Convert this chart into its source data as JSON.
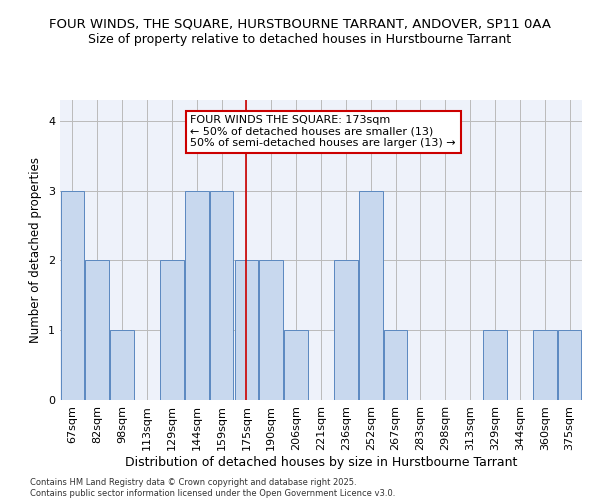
{
  "title": "FOUR WINDS, THE SQUARE, HURSTBOURNE TARRANT, ANDOVER, SP11 0AA",
  "subtitle": "Size of property relative to detached houses in Hurstbourne Tarrant",
  "xlabel": "Distribution of detached houses by size in Hurstbourne Tarrant",
  "ylabel": "Number of detached properties",
  "categories": [
    "67sqm",
    "82sqm",
    "98sqm",
    "113sqm",
    "129sqm",
    "144sqm",
    "159sqm",
    "175sqm",
    "190sqm",
    "206sqm",
    "221sqm",
    "236sqm",
    "252sqm",
    "267sqm",
    "283sqm",
    "298sqm",
    "313sqm",
    "329sqm",
    "344sqm",
    "360sqm",
    "375sqm"
  ],
  "values": [
    3,
    2,
    1,
    0,
    2,
    3,
    3,
    2,
    2,
    1,
    0,
    2,
    3,
    1,
    0,
    0,
    0,
    1,
    0,
    1,
    1
  ],
  "bar_color": "#c8d8ee",
  "bar_edge_color": "#5b88c0",
  "highlight_index": 7,
  "highlight_line_color": "#cc0000",
  "annotation_line1": "FOUR WINDS THE SQUARE: 173sqm",
  "annotation_line2": "← 50% of detached houses are smaller (13)",
  "annotation_line3": "50% of semi-detached houses are larger (13) →",
  "annotation_box_color": "#ffffff",
  "annotation_box_edge_color": "#cc0000",
  "ylim": [
    0,
    4.3
  ],
  "yticks": [
    0,
    1,
    2,
    3,
    4
  ],
  "footer_text": "Contains HM Land Registry data © Crown copyright and database right 2025.\nContains public sector information licensed under the Open Government Licence v3.0.",
  "background_color": "#eef2fa",
  "title_fontsize": 9.5,
  "subtitle_fontsize": 9,
  "xlabel_fontsize": 9,
  "ylabel_fontsize": 8.5,
  "tick_fontsize": 8,
  "annotation_fontsize": 8,
  "footer_fontsize": 6
}
